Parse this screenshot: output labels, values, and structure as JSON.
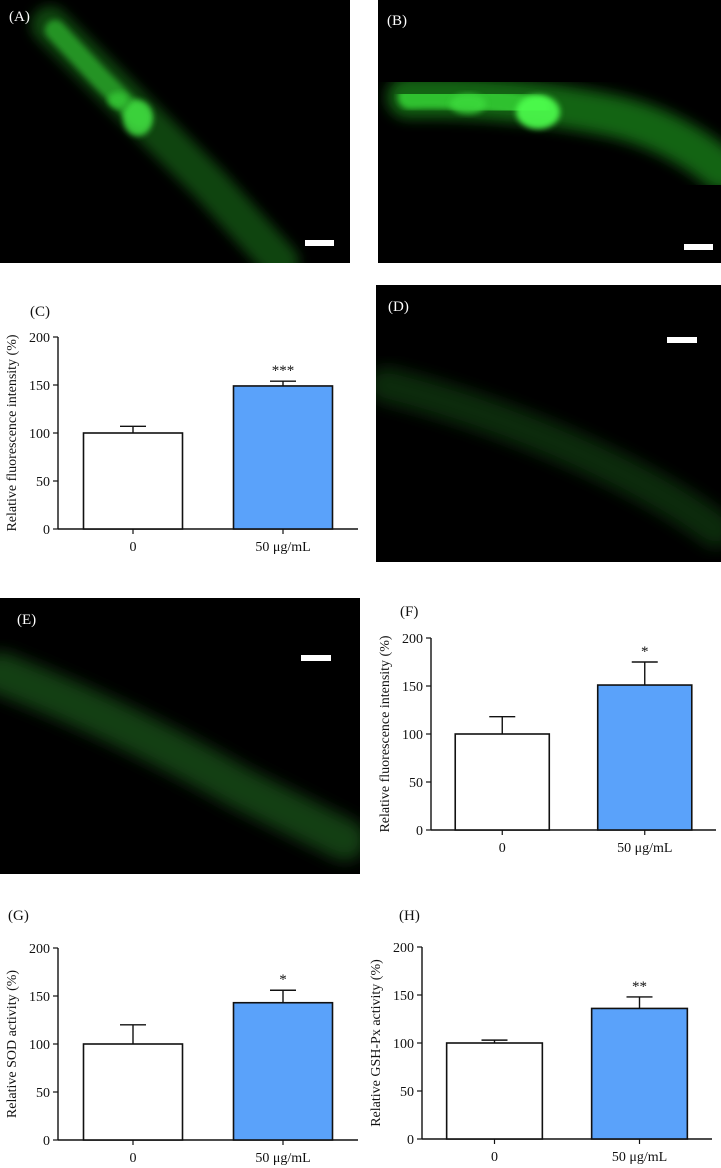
{
  "panels": {
    "A": {
      "label": "(A)"
    },
    "B": {
      "label": "(B)"
    },
    "D": {
      "label": "(D)"
    },
    "E": {
      "label": "(E)"
    }
  },
  "colors": {
    "fluorescence": "#22c722",
    "bar_control": "#ffffff",
    "bar_treated": "#5aa2fa",
    "axis": "#111111"
  },
  "chart_data": [
    {
      "id": "C",
      "panel_label": "(C)",
      "type": "bar",
      "categories": [
        "0",
        "50 μg/mL"
      ],
      "values": [
        100,
        149
      ],
      "errors": [
        7,
        5
      ],
      "significance": [
        "",
        "***"
      ],
      "ylabel": "Relative fluorescence intensity (%)",
      "xlabel": "",
      "ylim": [
        0,
        200
      ],
      "yticks": [
        0,
        50,
        100,
        150,
        200
      ],
      "grid": false
    },
    {
      "id": "F",
      "panel_label": "(F)",
      "type": "bar",
      "categories": [
        "0",
        "50 μg/mL"
      ],
      "values": [
        100,
        151
      ],
      "errors": [
        18,
        24
      ],
      "significance": [
        "",
        "*"
      ],
      "ylabel": "Relative fluorescence intensity (%)",
      "xlabel": "",
      "ylim": [
        0,
        200
      ],
      "yticks": [
        0,
        50,
        100,
        150,
        200
      ],
      "grid": false
    },
    {
      "id": "G",
      "panel_label": "(G)",
      "type": "bar",
      "categories": [
        "0",
        "50 μg/mL"
      ],
      "values": [
        100,
        143
      ],
      "errors": [
        20,
        13
      ],
      "significance": [
        "",
        "*"
      ],
      "ylabel": "Relative SOD activity (%)",
      "xlabel": "",
      "ylim": [
        0,
        200
      ],
      "yticks": [
        0,
        50,
        100,
        150,
        200
      ],
      "grid": false
    },
    {
      "id": "H",
      "panel_label": "(H)",
      "type": "bar",
      "categories": [
        "0",
        "50 μg/mL"
      ],
      "values": [
        100,
        136
      ],
      "errors": [
        3,
        12
      ],
      "significance": [
        "",
        "**"
      ],
      "ylabel": "Relative GSH-Px activity (%)",
      "xlabel": "",
      "ylim": [
        0,
        200
      ],
      "yticks": [
        0,
        50,
        100,
        150,
        200
      ],
      "grid": false
    }
  ]
}
